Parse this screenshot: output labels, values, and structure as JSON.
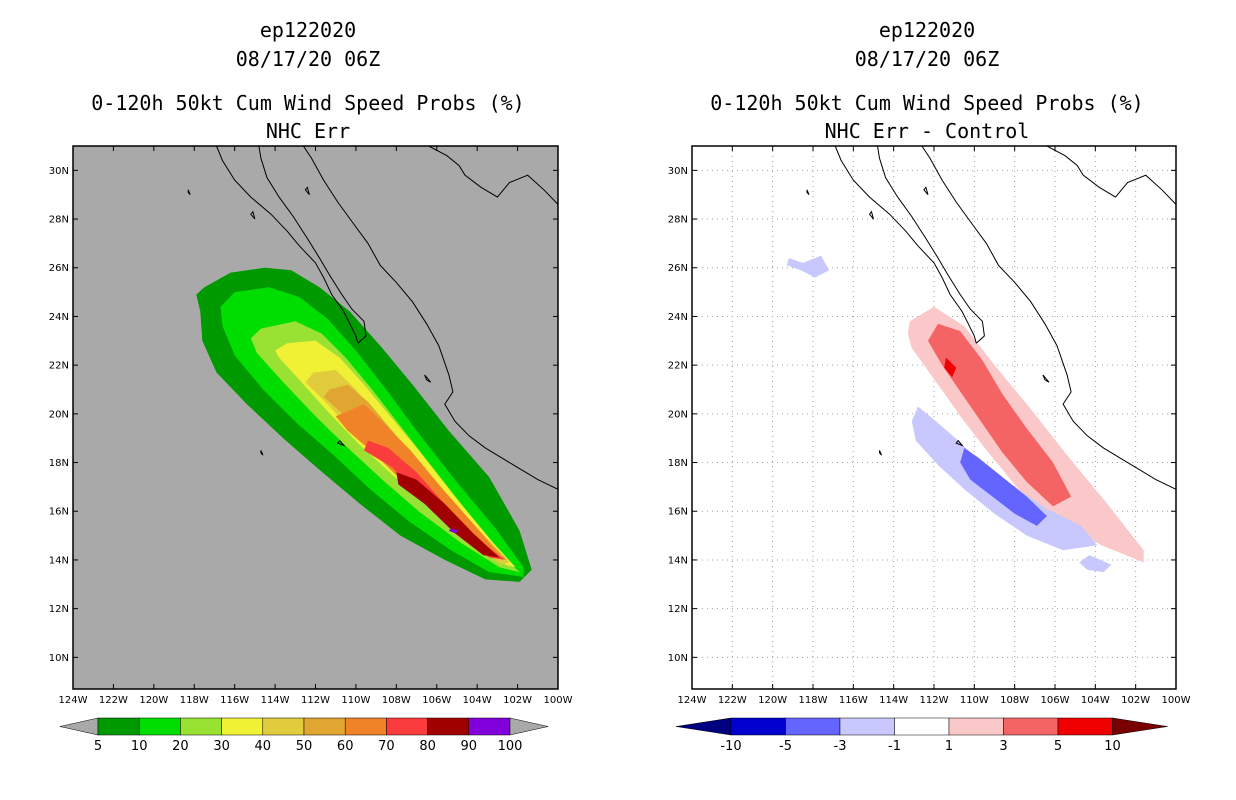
{
  "colors": {
    "land_background": "#a9a9a9",
    "coast": "#000000",
    "grid": "#a0a0a0"
  },
  "chart_data": [
    {
      "type": "heatmap",
      "storm_id": "ep122020",
      "datetime": "08/17/20 06Z",
      "title": "0-120h 50kt Cum Wind Speed Probs (%)",
      "subtitle": "NHC Err",
      "xlim": [
        -124,
        -100
      ],
      "ylim": [
        8.7,
        31
      ],
      "x_ticks": [
        -124,
        -122,
        -120,
        -118,
        -116,
        -114,
        -112,
        -110,
        -108,
        -106,
        -104,
        -102,
        -100
      ],
      "x_tick_labels": [
        "124W",
        "122W",
        "120W",
        "118W",
        "116W",
        "114W",
        "112W",
        "110W",
        "108W",
        "106W",
        "104W",
        "102W",
        "100W"
      ],
      "y_ticks": [
        10,
        12,
        14,
        16,
        18,
        20,
        22,
        24,
        26,
        28,
        30
      ],
      "y_tick_labels": [
        "10N",
        "12N",
        "14N",
        "16N",
        "18N",
        "20N",
        "22N",
        "24N",
        "26N",
        "28N",
        "30N"
      ],
      "grid": false,
      "colorbar": {
        "levels": [
          "5",
          "10",
          "20",
          "30",
          "40",
          "50",
          "60",
          "70",
          "80",
          "90",
          "100"
        ],
        "colors": [
          "#009900",
          "#00dd00",
          "#99e233",
          "#f0f035",
          "#e1cc3d",
          "#e1a632",
          "#f08228",
          "#fa3c3c",
          "#a00000",
          "#8200dc"
        ],
        "under_color": "#a9a9a9",
        "over_color": "#a9a9a9"
      },
      "contour_levels": [
        {
          "level": 5,
          "color": "#009900",
          "lon": [
            -117.5,
            -116.2,
            -114.5,
            -113.2,
            -111.8,
            -110.3,
            -108.8,
            -107.2,
            -105.4,
            -103.4,
            -101.9,
            -101.3,
            -101.9,
            -103.6,
            -105.6,
            -107.8,
            -109.8,
            -111.8,
            -113.6,
            -115.4,
            -116.9,
            -117.6,
            -117.7,
            -117.9
          ],
          "lat": [
            25.2,
            25.8,
            26.0,
            25.9,
            25.2,
            24.2,
            22.8,
            21.2,
            19.3,
            17.4,
            15.2,
            13.6,
            13.1,
            13.2,
            14.0,
            15.0,
            16.3,
            17.7,
            19.0,
            20.4,
            21.7,
            23.0,
            24.2,
            24.9
          ]
        },
        {
          "level": 10,
          "color": "#00dd00",
          "lon": [
            -116.0,
            -114.3,
            -112.8,
            -111.4,
            -110.0,
            -108.5,
            -106.9,
            -105.1,
            -103.1,
            -101.7,
            -101.7,
            -103.4,
            -105.3,
            -107.4,
            -109.3,
            -111.1,
            -112.9,
            -114.6,
            -116.0,
            -116.6,
            -116.7
          ],
          "lat": [
            25.0,
            25.2,
            24.8,
            23.9,
            22.6,
            21.0,
            19.2,
            17.3,
            15.3,
            13.7,
            13.3,
            13.5,
            14.4,
            15.6,
            16.9,
            18.3,
            19.6,
            21.0,
            22.4,
            23.6,
            24.4
          ]
        },
        {
          "level": 20,
          "color": "#99e233",
          "lon": [
            -114.7,
            -113.0,
            -111.7,
            -110.5,
            -109.2,
            -107.8,
            -106.3,
            -104.6,
            -102.7,
            -101.9,
            -102.9,
            -104.8,
            -106.9,
            -108.7,
            -110.4,
            -112.0,
            -113.6,
            -114.9,
            -115.2
          ],
          "lat": [
            23.5,
            23.8,
            23.3,
            22.3,
            21.0,
            19.5,
            17.9,
            16.1,
            14.1,
            13.5,
            13.7,
            14.7,
            16.0,
            17.3,
            18.6,
            19.9,
            21.3,
            22.5,
            23.1
          ]
        },
        {
          "level": 30,
          "color": "#f0f035",
          "lon": [
            -113.4,
            -112.0,
            -110.8,
            -109.6,
            -108.3,
            -106.8,
            -105.1,
            -103.2,
            -102.1,
            -102.6,
            -104.4,
            -106.4,
            -108.2,
            -109.9,
            -111.4,
            -112.8,
            -113.8,
            -114.0
          ],
          "lat": [
            22.9,
            23.0,
            22.3,
            21.2,
            19.9,
            18.4,
            16.6,
            14.7,
            13.7,
            13.8,
            14.8,
            16.2,
            17.5,
            18.8,
            20.1,
            21.4,
            22.3,
            22.6
          ]
        },
        {
          "level": 40,
          "color": "#e1cc3d",
          "lon": [
            -112.1,
            -111.0,
            -110.0,
            -108.9,
            -107.6,
            -106.0,
            -104.3,
            -102.4,
            -102.8,
            -104.6,
            -106.5,
            -108.3,
            -109.9,
            -111.4,
            -112.5
          ],
          "lat": [
            21.7,
            21.8,
            21.0,
            19.9,
            18.6,
            17.1,
            15.4,
            13.9,
            13.8,
            14.9,
            16.3,
            17.7,
            19.0,
            20.4,
            21.3
          ]
        },
        {
          "level": 50,
          "color": "#e1a632",
          "lon": [
            -111.3,
            -110.4,
            -109.4,
            -108.2,
            -106.7,
            -105.0,
            -103.1,
            -102.5,
            -104.1,
            -106.0,
            -107.7,
            -109.4,
            -110.8,
            -111.6
          ],
          "lat": [
            21.0,
            21.2,
            20.5,
            19.3,
            17.8,
            16.2,
            14.5,
            14.0,
            14.6,
            16.0,
            17.4,
            18.8,
            20.1,
            20.7
          ]
        },
        {
          "level": 60,
          "color": "#f08228",
          "lon": [
            -110.7,
            -109.6,
            -108.6,
            -107.3,
            -105.8,
            -104.1,
            -102.9,
            -103.8,
            -105.6,
            -107.4,
            -109.0,
            -110.4,
            -111.0
          ],
          "lat": [
            20.0,
            20.4,
            19.6,
            18.5,
            17.0,
            15.4,
            14.2,
            14.4,
            15.6,
            17.0,
            18.3,
            19.3,
            19.9
          ]
        },
        {
          "level": 70,
          "color": "#fa3c3c",
          "lon": [
            -109.4,
            -108.4,
            -107.0,
            -105.4,
            -103.8,
            -102.6,
            -103.4,
            -105.0,
            -106.7,
            -108.2,
            -109.6
          ],
          "lat": [
            18.9,
            18.6,
            17.6,
            16.1,
            14.7,
            14.0,
            14.1,
            15.1,
            16.5,
            17.8,
            18.5
          ]
        },
        {
          "level": 80,
          "color": "#a00000",
          "lon": [
            -108.0,
            -107.0,
            -105.6,
            -104.2,
            -102.9,
            -103.7,
            -105.1,
            -106.6,
            -107.9
          ],
          "lat": [
            17.6,
            17.3,
            16.3,
            15.1,
            14.1,
            14.2,
            15.1,
            16.3,
            17.1
          ]
        },
        {
          "level": 90,
          "color": "#8200dc",
          "lon": [
            -105.3,
            -104.9,
            -105.1,
            -105.4
          ],
          "lat": [
            15.3,
            15.2,
            15.1,
            15.2
          ]
        }
      ]
    },
    {
      "type": "heatmap",
      "storm_id": "ep122020",
      "datetime": "08/17/20 06Z",
      "title": "0-120h 50kt Cum Wind Speed Probs (%)",
      "subtitle": "NHC Err - Control",
      "xlim": [
        -124,
        -100
      ],
      "ylim": [
        8.7,
        31
      ],
      "x_ticks": [
        -124,
        -122,
        -120,
        -118,
        -116,
        -114,
        -112,
        -110,
        -108,
        -106,
        -104,
        -102,
        -100
      ],
      "x_tick_labels": [
        "124W",
        "122W",
        "120W",
        "118W",
        "116W",
        "114W",
        "112W",
        "110W",
        "108W",
        "106W",
        "104W",
        "102W",
        "100W"
      ],
      "y_ticks": [
        10,
        12,
        14,
        16,
        18,
        20,
        22,
        24,
        26,
        28,
        30
      ],
      "y_tick_labels": [
        "10N",
        "12N",
        "14N",
        "16N",
        "18N",
        "20N",
        "22N",
        "24N",
        "26N",
        "28N",
        "30N"
      ],
      "grid": true,
      "colorbar": {
        "levels": [
          "-10",
          "-5",
          "-3",
          "-1",
          "1",
          "3",
          "5",
          "10"
        ],
        "colors": [
          "#0000d0",
          "#6464ff",
          "#c8c8ff",
          "#ffffff",
          "#fac8c8",
          "#f56464",
          "#f00000"
        ],
        "under_color": "#000080",
        "over_color": "#780000"
      },
      "contour_levels": [
        {
          "level": 1,
          "color": "#fac8c8",
          "lon": [
            -113.2,
            -112.0,
            -110.5,
            -109.0,
            -107.2,
            -105.4,
            -103.5,
            -101.6,
            -101.6,
            -103.7,
            -105.8,
            -107.8,
            -109.3,
            -110.6,
            -111.8,
            -113.1,
            -113.3
          ],
          "lat": [
            23.8,
            24.4,
            23.6,
            22.0,
            20.2,
            18.3,
            16.4,
            14.4,
            13.9,
            14.6,
            15.6,
            16.9,
            18.4,
            19.8,
            21.2,
            22.7,
            23.3
          ]
        },
        {
          "level": 3,
          "color": "#f56464",
          "lon": [
            -111.8,
            -110.7,
            -109.6,
            -108.6,
            -107.4,
            -106.1,
            -105.2,
            -106.1,
            -107.4,
            -108.6,
            -109.6,
            -110.6,
            -111.6,
            -112.3
          ],
          "lat": [
            23.7,
            23.4,
            22.2,
            20.8,
            19.4,
            18.0,
            16.6,
            16.2,
            17.2,
            18.4,
            19.6,
            20.8,
            22.0,
            23.0
          ]
        },
        {
          "level": 5,
          "color": "#f00000",
          "lon": [
            -111.4,
            -110.9,
            -111.1,
            -111.5
          ],
          "lat": [
            22.3,
            21.9,
            21.5,
            21.9
          ]
        },
        {
          "level": -1,
          "color": "#c8c8ff",
          "lon": [
            -112.8,
            -111.9,
            -110.8,
            -109.6,
            -108.0,
            -106.4,
            -104.7,
            -103.9,
            -105.6,
            -107.4,
            -109.0,
            -110.5,
            -111.8,
            -112.9,
            -113.1
          ],
          "lat": [
            20.3,
            19.7,
            18.9,
            17.9,
            17.0,
            16.1,
            15.4,
            14.6,
            14.4,
            15.0,
            15.9,
            16.9,
            17.9,
            18.9,
            19.7
          ]
        },
        {
          "level": -3,
          "color": "#6464ff",
          "lon": [
            -110.5,
            -109.8,
            -108.6,
            -107.4,
            -106.4,
            -106.9,
            -108.0,
            -109.1,
            -110.2,
            -110.7
          ],
          "lat": [
            18.6,
            18.2,
            17.4,
            16.6,
            15.8,
            15.4,
            15.9,
            16.6,
            17.3,
            18.0
          ]
        },
        {
          "level": -1,
          "color": "#c8c8ff",
          "lon": [
            -119.2,
            -118.5,
            -117.6,
            -117.2,
            -117.9,
            -118.6,
            -119.3
          ],
          "lat": [
            26.4,
            26.2,
            26.5,
            25.9,
            25.6,
            25.9,
            26.1
          ]
        },
        {
          "level": -1,
          "color": "#c8c8ff",
          "lon": [
            -104.3,
            -103.2,
            -103.6,
            -104.4,
            -104.8
          ],
          "lat": [
            14.2,
            13.8,
            13.5,
            13.6,
            13.9
          ]
        }
      ]
    }
  ]
}
